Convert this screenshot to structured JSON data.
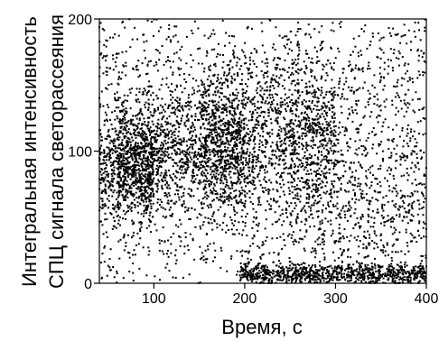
{
  "chart_data": {
    "type": "scatter",
    "title": "",
    "xlabel": "Время, с",
    "ylabel_lines": [
      "Интегральная интенсивность",
      "СПЦ сигнала светорассеяния"
    ],
    "xlim": [
      40,
      400
    ],
    "ylim": [
      0,
      200
    ],
    "xticks": [
      100,
      200,
      300,
      400
    ],
    "yticks": [
      0,
      100,
      200
    ],
    "xtick_labels": [
      "100",
      "200",
      "300",
      "400"
    ],
    "ytick_labels": [
      "0",
      "100",
      "200"
    ],
    "grid": false,
    "legend": "none",
    "marker_color": "#000000",
    "series": [
      {
        "clusters": [
          {
            "x_range": [
              40,
              100
            ],
            "y_center": 85,
            "y_spread": 18,
            "count": 650
          },
          {
            "x_range": [
              60,
              200
            ],
            "y_center": 100,
            "y_spread": 22,
            "count": 1300
          },
          {
            "x_range": [
              150,
              300
            ],
            "y_center": 110,
            "y_spread": 28,
            "count": 1300
          },
          {
            "x_range": [
              250,
              400
            ],
            "y_center": 80,
            "y_spread": 35,
            "count": 600
          },
          {
            "x_range": [
              40,
              400
            ],
            "y_center": 155,
            "y_spread": 28,
            "count": 750
          },
          {
            "x_range": [
              40,
              400
            ],
            "y_center": 40,
            "y_spread": 22,
            "count": 500
          },
          {
            "x_range": [
              195,
              400
            ],
            "y_center": 7,
            "y_spread": 4,
            "count": 900
          },
          {
            "x_range": [
              40,
              400
            ],
            "y_center": 100,
            "y_spread": 100,
            "count": 450
          }
        ]
      }
    ]
  }
}
